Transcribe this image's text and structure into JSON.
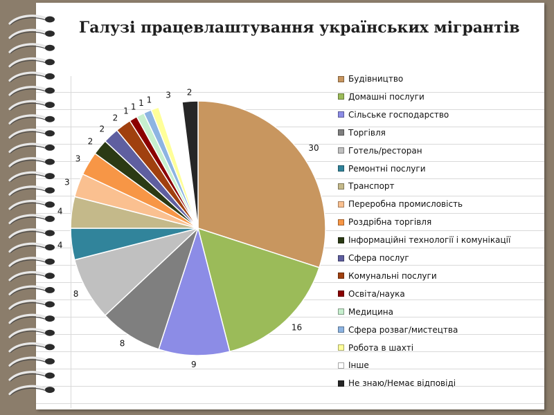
{
  "title": "Галузі працевлаштування українських мігрантів",
  "chart_data": {
    "type": "pie",
    "title": "Галузі працевлаштування українських мігрантів",
    "legend_position": "right",
    "slices": [
      {
        "label": "Будівництво",
        "value": 30,
        "color": "#c8965f"
      },
      {
        "label": "Домашні послуги",
        "value": 16,
        "color": "#9bbb59"
      },
      {
        "label": "Сільське господарство",
        "value": 9,
        "color": "#8c8ce6"
      },
      {
        "label": "Торгівля",
        "value": 8,
        "color": "#7f7f7f"
      },
      {
        "label": "Готель/ресторан",
        "value": 8,
        "color": "#c0c0c0"
      },
      {
        "label": "Ремонтні послуги",
        "value": 4,
        "color": "#31849b"
      },
      {
        "label": "Транспорт",
        "value": 4,
        "color": "#c4b98a"
      },
      {
        "label": "Переробна промисловість",
        "value": 3,
        "color": "#fac090"
      },
      {
        "label": "Роздрібна торгівля",
        "value": 3,
        "color": "#f79646"
      },
      {
        "label": "Інформаційні технології і комунікації",
        "value": 2,
        "color": "#2b3a14"
      },
      {
        "label": "Сфера послуг",
        "value": 2,
        "color": "#5f5fa0"
      },
      {
        "label": "Комунальні послуги",
        "value": 2,
        "color": "#a0400f"
      },
      {
        "label": "Освіта/наука",
        "value": 1,
        "color": "#8b0000"
      },
      {
        "label": "Медицина",
        "value": 1,
        "color": "#c6efce"
      },
      {
        "label": "Сфера розваг/мистецтва",
        "value": 1,
        "color": "#8db4e2"
      },
      {
        "label": "Робота в шахті",
        "value": 1,
        "color": "#ffff99"
      },
      {
        "label": "Інше",
        "value": 3,
        "color": "#ffffff"
      },
      {
        "label": "Не знаю/Немає відповіді",
        "value": 2,
        "color": "#262626"
      }
    ]
  }
}
